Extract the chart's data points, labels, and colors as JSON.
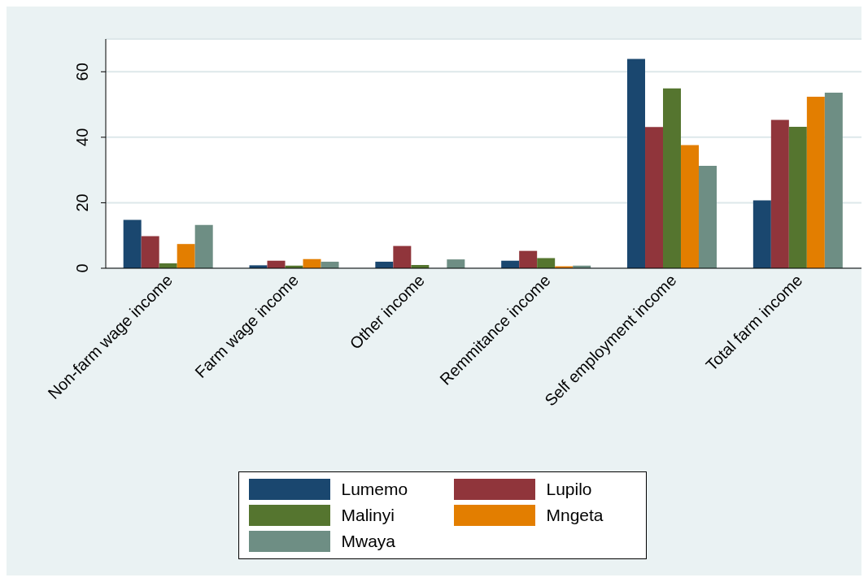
{
  "chart_data": {
    "type": "bar",
    "categories": [
      "Non-farm wage  income",
      "Farm wage income",
      "Other income",
      "Remmitance income",
      "Self employment income",
      "Total farm income"
    ],
    "series": [
      {
        "name": "Lumemo",
        "color": "#1a476f",
        "values": [
          14.8,
          0.9,
          2.0,
          2.3,
          63.9,
          20.7
        ]
      },
      {
        "name": "Lupilo",
        "color": "#90353b",
        "values": [
          9.8,
          2.3,
          6.8,
          5.3,
          43.1,
          45.3
        ]
      },
      {
        "name": "Malinyi",
        "color": "#55752f",
        "values": [
          1.5,
          0.8,
          1.0,
          3.1,
          54.9,
          43.2
        ]
      },
      {
        "name": "Mngeta",
        "color": "#e37e00",
        "values": [
          7.4,
          2.8,
          0,
          0.6,
          37.6,
          52.4
        ]
      },
      {
        "name": "Mwaya",
        "color": "#6e8e84",
        "values": [
          13.2,
          2.0,
          2.7,
          0.8,
          31.3,
          53.6
        ]
      }
    ],
    "ylim": [
      0,
      70
    ],
    "yticks": [
      0,
      20,
      40,
      60
    ],
    "grid": "y",
    "legend": "bottom"
  }
}
